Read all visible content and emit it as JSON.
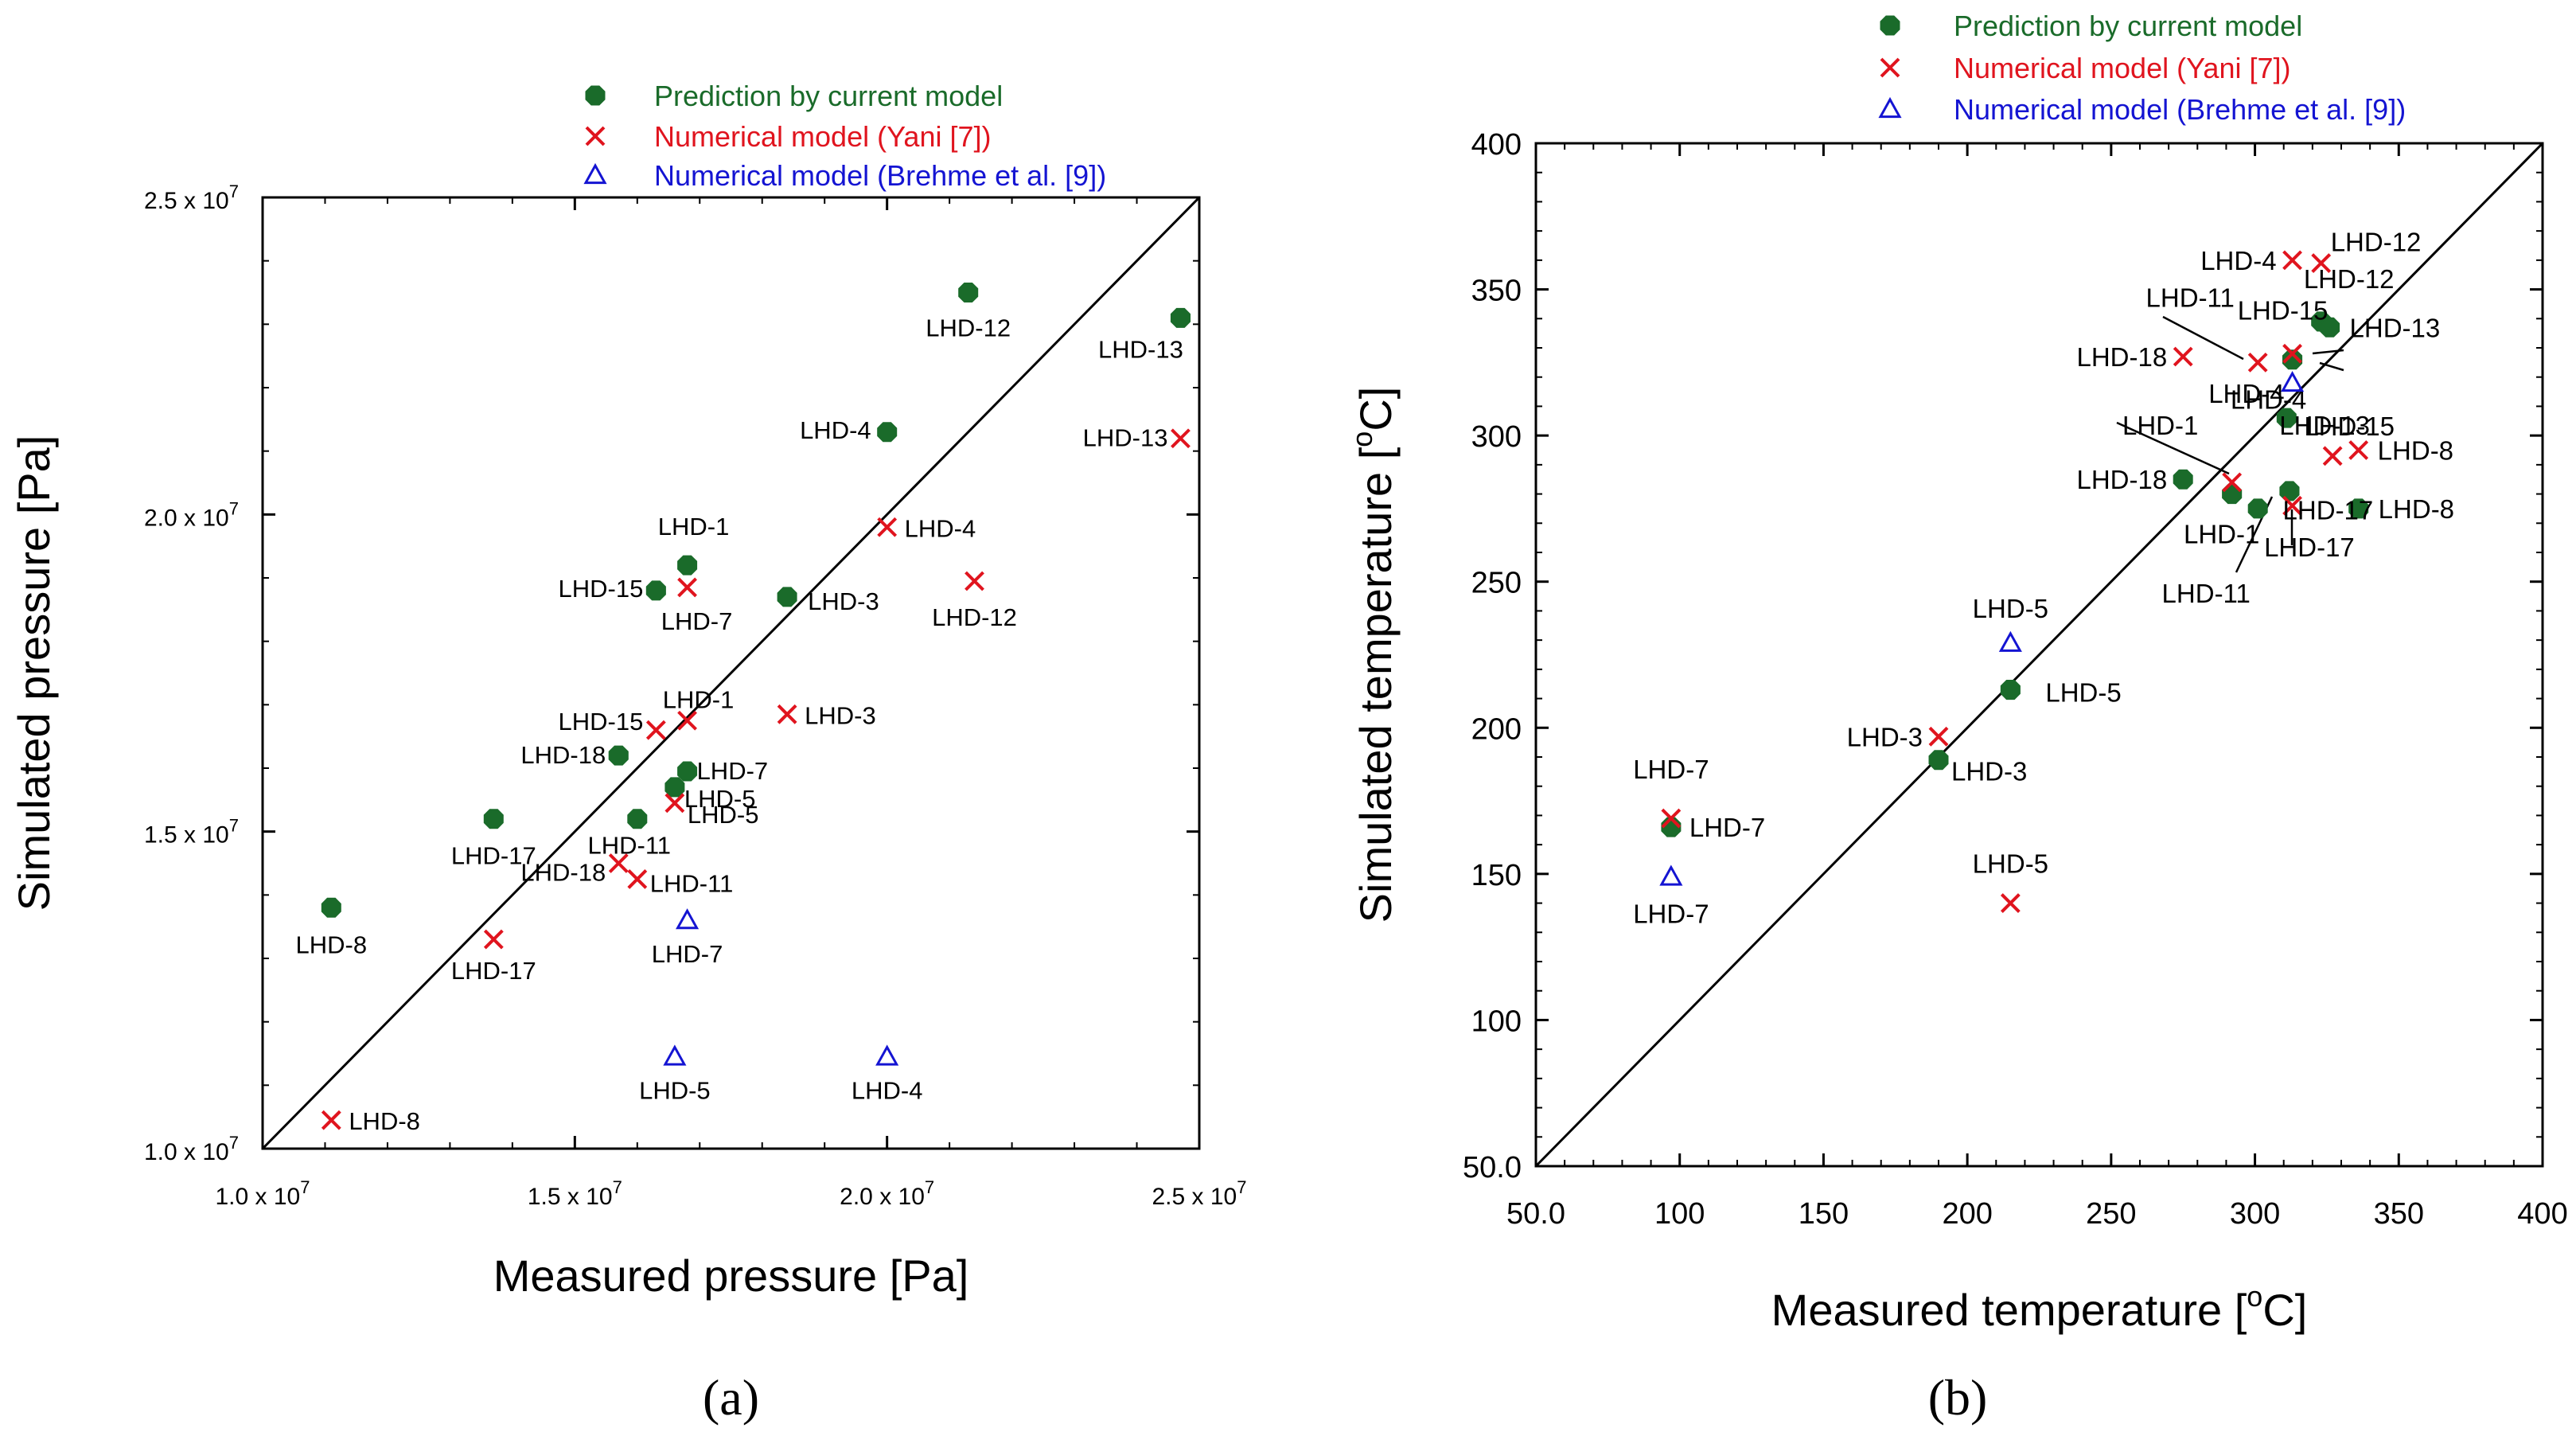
{
  "chart_data": [
    {
      "panel": "(a)",
      "type": "scatter",
      "xlabel": "Measured pressure [Pa]",
      "ylabel": "Simulated pressure [Pa]",
      "xlim": [
        10000000,
        25000000
      ],
      "ylim": [
        10000000,
        25000000
      ],
      "tick_values": [
        10000000,
        15000000,
        20000000,
        25000000
      ],
      "x_tick_labels": [
        {
          "mantissa": "1.0 x 10",
          "exp": "7"
        },
        {
          "mantissa": "1.5 x 10",
          "exp": "7"
        },
        {
          "mantissa": "2.0 x 10",
          "exp": "7"
        },
        {
          "mantissa": "2.5 x 10",
          "exp": "7"
        }
      ],
      "y_tick_labels": [
        {
          "mantissa": "1.0 x 10",
          "exp": "7"
        },
        {
          "mantissa": "1.5 x 10",
          "exp": "7"
        },
        {
          "mantissa": "2.0 x 10",
          "exp": "7"
        },
        {
          "mantissa": "2.5 x 10",
          "exp": "7"
        }
      ],
      "reference_line": "y = x",
      "legend": [
        "Prediction by current model",
        "Numerical model (Yani [7])",
        "Numerical model (Brehme et al. [9])"
      ],
      "series": [
        {
          "name": "Prediction by current model",
          "marker": "circle",
          "color": "#1a6b2a",
          "points": [
            {
              "label": "LHD-12",
              "x": 21300000,
              "y": 23500000
            },
            {
              "label": "LHD-13",
              "x": 24700000,
              "y": 23100000
            },
            {
              "label": "LHD-4",
              "x": 20000000,
              "y": 21300000
            },
            {
              "label": "LHD-1",
              "x": 16800000,
              "y": 19200000
            },
            {
              "label": "LHD-15",
              "x": 16300000,
              "y": 18800000
            },
            {
              "label": "LHD-3",
              "x": 18400000,
              "y": 18700000
            },
            {
              "label": "LHD-18",
              "x": 15700000,
              "y": 16200000
            },
            {
              "label": "LHD-7",
              "x": 16800000,
              "y": 15950000
            },
            {
              "label": "LHD-5",
              "x": 16600000,
              "y": 15700000
            },
            {
              "label": "LHD-17",
              "x": 13700000,
              "y": 15200000
            },
            {
              "label": "LHD-11",
              "x": 16000000,
              "y": 15200000
            },
            {
              "label": "LHD-8",
              "x": 11100000,
              "y": 13800000
            }
          ]
        },
        {
          "name": "Numerical model (Yani [7])",
          "marker": "x",
          "color": "#e0141e",
          "points": [
            {
              "label": "LHD-13",
              "x": 24700000,
              "y": 21200000
            },
            {
              "label": "LHD-4",
              "x": 20000000,
              "y": 19800000
            },
            {
              "label": "LHD-12",
              "x": 21400000,
              "y": 18950000
            },
            {
              "label": "LHD-7",
              "x": 16800000,
              "y": 18850000
            },
            {
              "label": "LHD-3",
              "x": 18400000,
              "y": 16850000
            },
            {
              "label": "LHD-1",
              "x": 16800000,
              "y": 16750000
            },
            {
              "label": "LHD-15",
              "x": 16300000,
              "y": 16600000
            },
            {
              "label": "LHD-5",
              "x": 16600000,
              "y": 15450000
            },
            {
              "label": "LHD-18",
              "x": 15700000,
              "y": 14500000
            },
            {
              "label": "LHD-11",
              "x": 16000000,
              "y": 14250000
            },
            {
              "label": "LHD-17",
              "x": 13700000,
              "y": 13300000
            },
            {
              "label": "LHD-8",
              "x": 11100000,
              "y": 10450000
            }
          ]
        },
        {
          "name": "Numerical model (Brehme et al. [9])",
          "marker": "triangle",
          "color": "#1414d2",
          "points": [
            {
              "label": "LHD-7",
              "x": 16800000,
              "y": 13600000
            },
            {
              "label": "LHD-5",
              "x": 16600000,
              "y": 11450000
            },
            {
              "label": "LHD-4",
              "x": 20000000,
              "y": 11450000
            }
          ]
        }
      ]
    },
    {
      "panel": "(b)",
      "type": "scatter",
      "xlabel_main": "Measured temperature [",
      "xlabel_sup": "o",
      "xlabel_unit": "C]",
      "ylabel_main": "Simulated temperature [",
      "ylabel_sup": "o",
      "ylabel_unit": "C]",
      "xlim": [
        50,
        400
      ],
      "ylim": [
        50,
        400
      ],
      "tick_values": [
        50,
        100,
        150,
        200,
        250,
        300,
        350,
        400
      ],
      "x_tick_labels": [
        "50.0",
        "100",
        "150",
        "200",
        "250",
        "300",
        "350",
        "400"
      ],
      "y_tick_labels": [
        "50.0",
        "100",
        "150",
        "200",
        "250",
        "300",
        "350",
        "400"
      ],
      "reference_line": "y = x",
      "legend": [
        "Prediction by current model",
        "Numerical model (Yani [7])",
        "Numerical model (Brehme et al. [9])"
      ],
      "series": [
        {
          "name": "Prediction by current model",
          "marker": "circle",
          "color": "#1a6b2a",
          "points": [
            {
              "label": "LHD-12",
              "x": 323,
              "y": 339
            },
            {
              "label": "LHD-13",
              "x": 326,
              "y": 337
            },
            {
              "label": "LHD-4",
              "x": 313,
              "y": 326
            },
            {
              "label": "LHD-15",
              "x": 311,
              "y": 306
            },
            {
              "label": "LHD-18",
              "x": 275,
              "y": 285
            },
            {
              "label": "LHD-1",
              "x": 292,
              "y": 280
            },
            {
              "label": "LHD-11",
              "x": 301,
              "y": 275
            },
            {
              "label": "LHD-17",
              "x": 312,
              "y": 281
            },
            {
              "label": "LHD-8",
              "x": 336,
              "y": 275
            },
            {
              "label": "LHD-5",
              "x": 215,
              "y": 213
            },
            {
              "label": "LHD-3",
              "x": 190,
              "y": 189
            },
            {
              "label": "LHD-7",
              "x": 97,
              "y": 166
            }
          ]
        },
        {
          "name": "Numerical model (Yani [7])",
          "marker": "x",
          "color": "#e0141e",
          "points": [
            {
              "label": "LHD-4",
              "x": 313,
              "y": 360
            },
            {
              "label": "LHD-12",
              "x": 323,
              "y": 359
            },
            {
              "label": "LHD-18",
              "x": 275,
              "y": 327
            },
            {
              "label": "LHD-11",
              "x": 301,
              "y": 325
            },
            {
              "label": "LHD-15",
              "x": 313,
              "y": 328
            },
            {
              "label": "LHD-8",
              "x": 336,
              "y": 295
            },
            {
              "label": "LHD-13",
              "x": 327,
              "y": 293
            },
            {
              "label": "LHD-1",
              "x": 292,
              "y": 284
            },
            {
              "label": "LHD-17",
              "x": 313,
              "y": 276
            },
            {
              "label": "LHD-3",
              "x": 190,
              "y": 197
            },
            {
              "label": "LHD-7",
              "x": 97,
              "y": 169
            },
            {
              "label": "LHD-5",
              "x": 215,
              "y": 140
            }
          ]
        },
        {
          "name": "Numerical model (Brehme et al. [9])",
          "marker": "triangle",
          "color": "#1414d2",
          "points": [
            {
              "label": "LHD-4",
              "x": 313,
              "y": 318
            },
            {
              "label": "LHD-5",
              "x": 215,
              "y": 229
            },
            {
              "label": "LHD-7",
              "x": 97,
              "y": 149
            }
          ]
        }
      ]
    }
  ]
}
